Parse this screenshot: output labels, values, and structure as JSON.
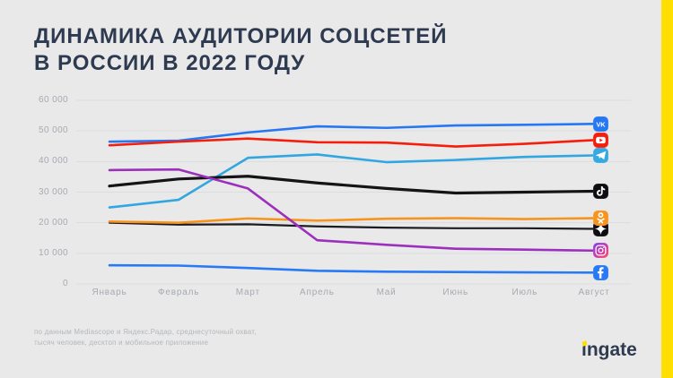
{
  "slide": {
    "title_line1": "ДИНАМИКА АУДИТОРИИ СОЦСЕТЕЙ",
    "title_line2": "В РОССИИ В 2022 ГОДУ",
    "footnote_line1": "по данным Mediascope и Яндекс.Радар, среднесуточный охват,",
    "footnote_line2": "тысяч человек, десктоп и мобильное приложение",
    "logo_text": "ingate",
    "accent_color": "#ffdf00",
    "background_color": "#e9e9e9",
    "title_color": "#2e3a50"
  },
  "chart_data": {
    "type": "line",
    "title": "Динамика аудитории соцсетей в России в 2022 году",
    "unit": "тысяч человек, среднесуточный охват",
    "categories": [
      "Январь",
      "Февраль",
      "Март",
      "Апрель",
      "Май",
      "Июнь",
      "Июль",
      "Август"
    ],
    "ylim": [
      0,
      60000
    ],
    "grid": true,
    "legend_position": "brand icons at right ends of lines",
    "y_ticks": [
      {
        "label": "0",
        "value": 0
      },
      {
        "label": "10 000",
        "value": 10000
      },
      {
        "label": "20 000",
        "value": 20000
      },
      {
        "label": "30 000",
        "value": 30000
      },
      {
        "label": "40 000",
        "value": 40000
      },
      {
        "label": "50 000",
        "value": 50000
      },
      {
        "label": "60 000",
        "value": 60000
      }
    ],
    "series": [
      {
        "name": "ВКонтакте",
        "icon": "vk-icon",
        "color": "#2577f3",
        "line_width": 2.6,
        "values": [
          46500,
          46800,
          49500,
          51500,
          51000,
          51800,
          52000,
          52300
        ]
      },
      {
        "name": "YouTube",
        "icon": "youtube-icon",
        "color": "#f51d0c",
        "line_width": 2.6,
        "values": [
          45300,
          46500,
          47500,
          46300,
          46200,
          44900,
          45800,
          47000
        ]
      },
      {
        "name": "Telegram",
        "icon": "telegram-icon",
        "color": "#31a6e0",
        "line_width": 2.6,
        "values": [
          25000,
          27500,
          41200,
          42300,
          39800,
          40500,
          41500,
          42000
        ]
      },
      {
        "name": "TikTok",
        "icon": "tiktok-icon",
        "color": "#141417",
        "line_width": 3.2,
        "values": [
          32000,
          34300,
          35200,
          33000,
          31200,
          29700,
          30000,
          30300
        ]
      },
      {
        "name": "Дзен",
        "icon": "zen-icon",
        "color": "#1b1c22",
        "line_width": 2.2,
        "values": [
          20000,
          19400,
          19500,
          18800,
          18400,
          18200,
          18200,
          18000
        ]
      },
      {
        "name": "Одноклассники",
        "icon": "ok-icon",
        "color": "#f7941d",
        "line_width": 2.6,
        "values": [
          20400,
          20000,
          21400,
          20700,
          21300,
          21500,
          21200,
          21500
        ]
      },
      {
        "name": "Instagram",
        "icon": "instagram-icon",
        "color": "#9d2fbd",
        "line_width": 2.6,
        "values": [
          37200,
          37400,
          31200,
          14300,
          12800,
          11500,
          11200,
          10900
        ]
      },
      {
        "name": "Facebook",
        "icon": "facebook-icon",
        "color": "#2779f5",
        "line_width": 2.6,
        "values": [
          6100,
          6000,
          5200,
          4300,
          4000,
          3900,
          3800,
          3700
        ]
      }
    ]
  }
}
